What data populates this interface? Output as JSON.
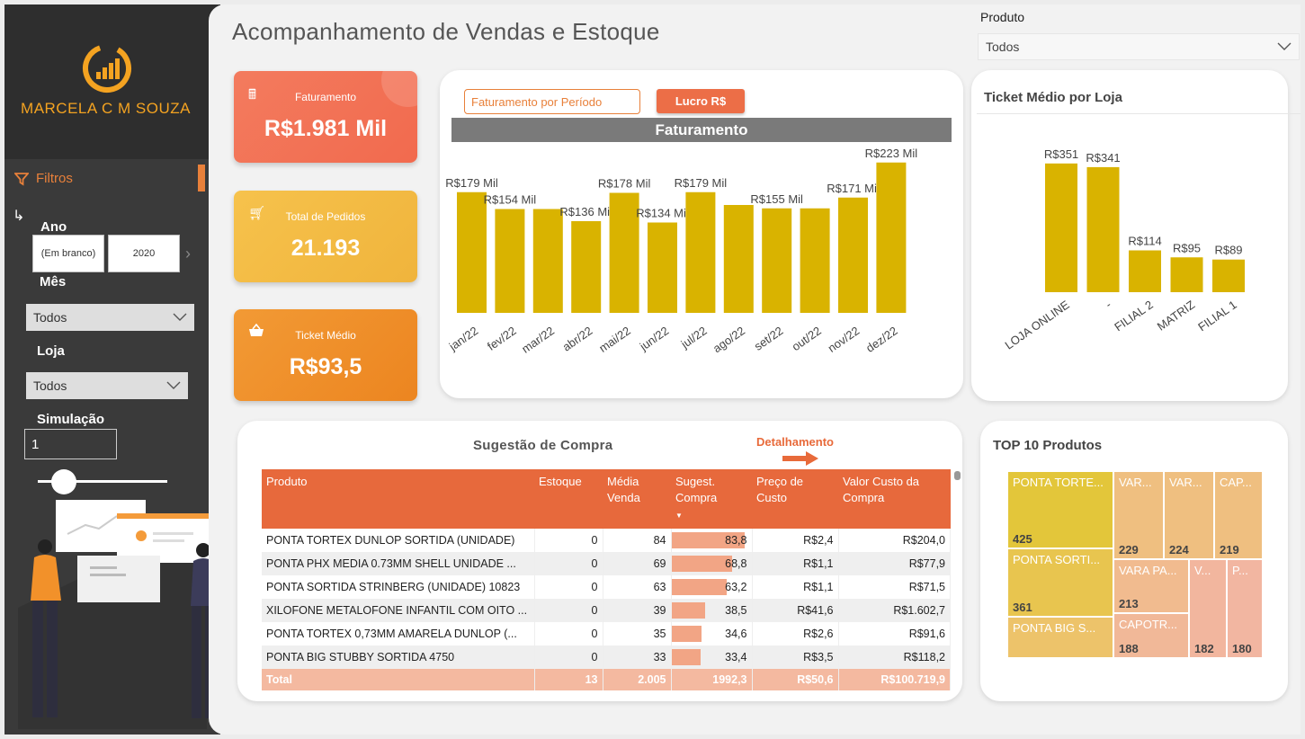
{
  "brand": {
    "name": "MARCELA C M SOUZA"
  },
  "sidebar": {
    "filters_label": "Filtros",
    "ano_label": "Ano",
    "ano_options": [
      "(Em branco)",
      "2020"
    ],
    "mes_label": "Mês",
    "mes_value": "Todos",
    "loja_label": "Loja",
    "loja_value": "Todos",
    "simulacao_label": "Simulação",
    "simulacao_value": "1",
    "slider_fraction": 0.2
  },
  "header": {
    "title": "Acompanhamento de Vendas  e Estoque",
    "produto_label": "Produto",
    "produto_value": "Todos"
  },
  "kpis": {
    "faturamento": {
      "label": "Faturamento",
      "value": "R$1.981 Mil",
      "icon": "cash-register-icon"
    },
    "pedidos": {
      "label": "Total de Pedidos",
      "value": "21.193",
      "icon": "cart-icon"
    },
    "ticket": {
      "label": "Ticket Médio",
      "value": "R$93,5",
      "icon": "basket-icon"
    }
  },
  "faturamento_panel": {
    "btn_periodo": "Faturamento por Período",
    "btn_lucro": "Lucro R$",
    "chart_title": "Faturamento"
  },
  "ticket_panel": {
    "title": "Ticket Médio por Loja"
  },
  "sugestao": {
    "title": "Sugestão de Compra",
    "detalhamento": "Detalhamento",
    "columns": [
      "Produto",
      "Estoque",
      "Média Venda",
      "Sugest. Compra",
      "Preço de Custo",
      "Valor Custo da Compra"
    ],
    "rows": [
      {
        "produto": "PONTA TORTEX DUNLOP SORTIDA (UNIDADE)",
        "estoque": "0",
        "media": "84",
        "sugest": "83,8",
        "sugest_num": 83.8,
        "preco": "R$2,4",
        "valor": "R$204,0"
      },
      {
        "produto": "PONTA PHX MEDIA 0.73MM SHELL UNIDADE ...",
        "estoque": "0",
        "media": "69",
        "sugest": "68,8",
        "sugest_num": 68.8,
        "preco": "R$1,1",
        "valor": "R$77,9"
      },
      {
        "produto": "PONTA SORTIDA STRINBERG (UNIDADE) 10823",
        "estoque": "0",
        "media": "63",
        "sugest": "63,2",
        "sugest_num": 63.2,
        "preco": "R$1,1",
        "valor": "R$71,5"
      },
      {
        "produto": "XILOFONE METALOFONE INFANTIL COM OITO ...",
        "estoque": "0",
        "media": "39",
        "sugest": "38,5",
        "sugest_num": 38.5,
        "preco": "R$41,6",
        "valor": "R$1.602,7"
      },
      {
        "produto": "PONTA TORTEX 0,73MM AMARELA DUNLOP (...",
        "estoque": "0",
        "media": "35",
        "sugest": "34,6",
        "sugest_num": 34.6,
        "preco": "R$2,6",
        "valor": "R$91,6"
      },
      {
        "produto": "PONTA BIG STUBBY SORTIDA 4750",
        "estoque": "0",
        "media": "33",
        "sugest": "33,4",
        "sugest_num": 33.4,
        "preco": "R$3,5",
        "valor": "R$118,2"
      }
    ],
    "total": {
      "label": "Total",
      "estoque": "13",
      "media": "2.005",
      "sugest": "1992,3",
      "preco": "R$50,6",
      "valor": "R$100.719,9"
    }
  },
  "top10": {
    "title": "TOP 10 Produtos",
    "items": [
      {
        "name": "PONTA TORTE...",
        "value": "425",
        "color": "#e3c63a"
      },
      {
        "name": "PONTA SORTI...",
        "value": "361",
        "color": "#e8c54f"
      },
      {
        "name": "PONTA BIG S...",
        "value": "",
        "color": "#edc36a"
      },
      {
        "name": "VAR...",
        "value": "229",
        "color": "#efbf80"
      },
      {
        "name": "VAR...",
        "value": "224",
        "color": "#efbf80"
      },
      {
        "name": "CAP...",
        "value": "219",
        "color": "#efbf80"
      },
      {
        "name": "VARA PA...",
        "value": "213",
        "color": "#f1bb8f"
      },
      {
        "name": "CAPOTR...",
        "value": "188",
        "color": "#f1b898"
      },
      {
        "name": "V...",
        "value": "182",
        "color": "#f2b69e"
      },
      {
        "name": "P...",
        "value": "180",
        "color": "#f2b6a1"
      }
    ]
  },
  "chart_data": [
    {
      "type": "bar",
      "title": "Faturamento",
      "categories": [
        "jan/22",
        "fev/22",
        "mar/22",
        "abr/22",
        "mai/22",
        "jun/22",
        "jul/22",
        "ago/22",
        "set/22",
        "out/22",
        "nov/22",
        "dez/22"
      ],
      "values": [
        179,
        154,
        154,
        136,
        178,
        134,
        179,
        160,
        155,
        155,
        171,
        223
      ],
      "labels": [
        "R$179 Mil",
        "R$154 Mil",
        "",
        "R$136 Mil",
        "R$178 Mil",
        "R$134 Mil",
        "R$179 Mil",
        "",
        "R$155 Mil",
        "",
        "R$171 Mil",
        "R$223 Mil"
      ],
      "ylim": [
        0,
        240
      ],
      "color": "#d9b300"
    },
    {
      "type": "bar",
      "title": "Ticket Médio por Loja",
      "categories": [
        "LOJA ONLINE",
        "-",
        "FILIAL 2",
        "MATRIZ",
        "FILIAL 1"
      ],
      "values": [
        351,
        341,
        114,
        95,
        89
      ],
      "labels": [
        "R$351",
        "R$341",
        "R$114",
        "R$95",
        "R$89"
      ],
      "ylim": [
        0,
        380
      ],
      "color": "#d9b300"
    }
  ]
}
